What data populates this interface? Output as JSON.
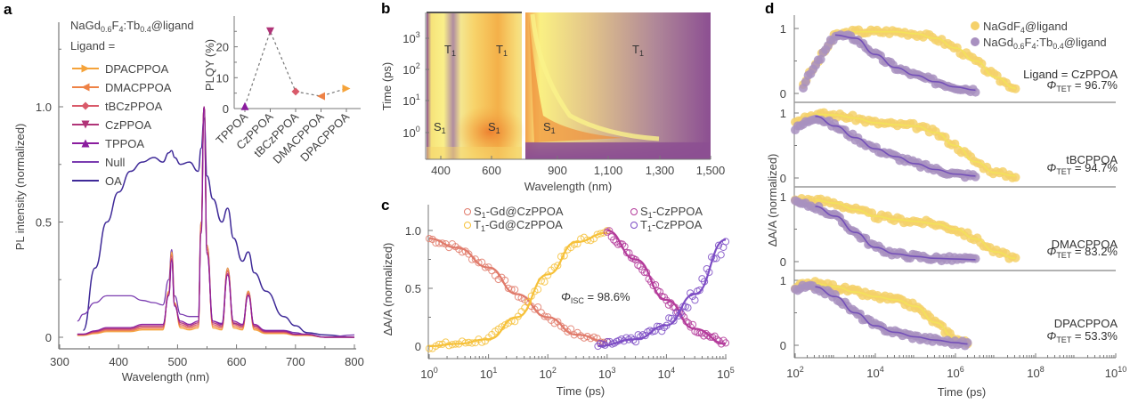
{
  "chart_data": [
    {
      "panel": "a",
      "type": "line",
      "title": "NaGd0.6F4:Tb0.4@ligand",
      "legend_title": "Ligand =",
      "xlabel": "Wavelength (nm)",
      "ylabel": "PL intensity (normalized)",
      "xlim": [
        300,
        800
      ],
      "ylim": [
        -0.03,
        1.4
      ],
      "xticks": [
        "300",
        "400",
        "500",
        "600",
        "700",
        "800"
      ],
      "yticks": [
        "0",
        "0.5",
        "1.0"
      ],
      "legend_position": "top-left",
      "series": [
        {
          "name": "DPACPPOA",
          "color": "#f5a33a",
          "marker": "triangle-right"
        },
        {
          "name": "DMACPPOA",
          "color": "#ee8246",
          "marker": "triangle-left"
        },
        {
          "name": "tBCzPPOA",
          "color": "#d95a6a",
          "marker": "diamond"
        },
        {
          "name": "CzPPOA",
          "color": "#b03478",
          "marker": "triangle-down"
        },
        {
          "name": "TPPOA",
          "color": "#8a1c9e",
          "marker": "triangle-up"
        },
        {
          "name": "Null",
          "color": "#7a3cb0",
          "marker": "none"
        },
        {
          "name": "OA",
          "color": "#3f2a98",
          "marker": "none"
        }
      ],
      "x": [
        330,
        340,
        360,
        380,
        400,
        420,
        440,
        460,
        475,
        485,
        490,
        495,
        505,
        520,
        535,
        540,
        545,
        550,
        560,
        575,
        585,
        595,
        610,
        620,
        630,
        650,
        680,
        700,
        720,
        750,
        800
      ],
      "tb_peak_series": [
        0.01,
        0.01,
        0.02,
        0.03,
        0.03,
        0.03,
        0.04,
        0.04,
        0.04,
        0.2,
        0.37,
        0.15,
        0.05,
        0.04,
        0.05,
        0.5,
        1.0,
        0.4,
        0.05,
        0.04,
        0.3,
        0.05,
        0.04,
        0.2,
        0.04,
        0.02,
        0.02,
        0.01,
        0.01,
        0.0,
        0.0
      ],
      "null_series": [
        0.07,
        0.1,
        0.15,
        0.18,
        0.18,
        0.18,
        0.16,
        0.15,
        0.14,
        0.25,
        0.38,
        0.18,
        0.1,
        0.09,
        0.09,
        0.5,
        1.0,
        0.4,
        0.07,
        0.06,
        0.3,
        0.06,
        0.05,
        0.2,
        0.05,
        0.03,
        0.03,
        0.02,
        0.01,
        0.0,
        0.01
      ],
      "oa_series": [
        null,
        0.03,
        0.3,
        0.5,
        0.63,
        0.72,
        0.76,
        0.78,
        0.76,
        0.8,
        0.81,
        0.78,
        0.75,
        0.76,
        0.72,
        0.82,
        0.95,
        0.7,
        0.6,
        0.5,
        0.56,
        0.43,
        0.33,
        0.37,
        0.28,
        0.2,
        0.09,
        0.05,
        0.02,
        0.01,
        0.0
      ],
      "inset": {
        "type": "line",
        "ylabel": "PLQY (%)",
        "yticks": [
          "0",
          "10",
          "20"
        ],
        "ylim": [
          0,
          27
        ],
        "categories": [
          "TPPOA",
          "CzPPOA",
          "tBCzPPOA",
          "DMACPPOA",
          "DPACPPOA"
        ],
        "values": [
          0.8,
          25,
          5.5,
          4,
          6.5
        ],
        "colors": [
          "#8a1c9e",
          "#b03478",
          "#d95a6a",
          "#ee8246",
          "#f5a33a"
        ]
      }
    },
    {
      "panel": "b",
      "type": "heatmap",
      "xlabel": "Wavelength (nm)",
      "ylabel": "Time (ps)",
      "xticks": [
        "400",
        "600",
        "900",
        "1,100",
        "1,300",
        "1,500"
      ],
      "yticks": [
        "10^0",
        "10^1",
        "10^2",
        "10^3"
      ],
      "xlim": [
        350,
        1500
      ],
      "ylim_log10": [
        -1,
        4
      ],
      "annotations": [
        "T1",
        "T1",
        "T1",
        "S1",
        "S1",
        "S1"
      ]
    },
    {
      "panel": "c",
      "type": "scatter",
      "xlabel": "Time (ps)",
      "ylabel": "ΔA/A (normalized)",
      "xscale": "log",
      "xlim": [
        1,
        100000
      ],
      "ylim": [
        -0.05,
        1.1
      ],
      "xticks": [
        "10^0",
        "10^1",
        "10^2",
        "10^3",
        "10^4",
        "10^5"
      ],
      "yticks": [
        "0",
        "0.5",
        "1.0"
      ],
      "annotation": "Φ_ISC = 98.6%",
      "series": [
        {
          "name": "S1-Gd@CzPPOA",
          "color": "#e07a6a",
          "x": [
            1,
            3,
            10,
            30,
            100,
            300,
            1000
          ],
          "values": [
            0.93,
            0.85,
            0.68,
            0.45,
            0.25,
            0.1,
            0.04
          ]
        },
        {
          "name": "T1-Gd@CzPPOA",
          "color": "#f6c13a",
          "x": [
            1,
            3,
            10,
            30,
            100,
            300,
            1000
          ],
          "values": [
            0.0,
            0.02,
            0.06,
            0.25,
            0.62,
            0.9,
            0.98
          ]
        },
        {
          "name": "S1-CzPPOA",
          "color": "#b33a9a",
          "x": [
            1000,
            3000,
            10000,
            30000,
            100000
          ],
          "values": [
            1.0,
            0.75,
            0.4,
            0.15,
            0.02
          ]
        },
        {
          "name": "T1-CzPPOA",
          "color": "#7c4cc4",
          "x": [
            700,
            3000,
            10000,
            30000,
            100000
          ],
          "values": [
            0.0,
            0.06,
            0.18,
            0.45,
            0.92
          ]
        }
      ]
    },
    {
      "panel": "d",
      "type": "scatter",
      "xlabel": "Time (ps)",
      "ylabel": "ΔA/A (normalized)",
      "xscale": "log",
      "xlim": [
        100,
        10000000000
      ],
      "xticks": [
        "10^2",
        "10^4",
        "10^6",
        "10^8",
        "10^10"
      ],
      "yticks": [
        "0",
        "1"
      ],
      "legend": [
        {
          "name": "NaGdF4@ligand",
          "color": "#f5d16a"
        },
        {
          "name": "NaGd0.6F4:Tb0.4@ligand",
          "color": "#a890c0"
        }
      ],
      "subplots": [
        {
          "label": "Ligand = CzPPOA",
          "phi": "Φ_TET = 96.7%",
          "x_log": [
            2.2,
            3.0,
            3.5,
            4.0,
            4.5,
            5.0,
            5.5,
            6.0,
            6.5,
            7.0,
            7.5
          ],
          "gd": [
            0.15,
            0.9,
            0.95,
            0.95,
            0.95,
            0.92,
            0.85,
            0.7,
            0.5,
            0.25,
            0.08
          ],
          "tb": [
            0.12,
            0.9,
            0.85,
            0.6,
            0.4,
            0.28,
            0.18,
            0.1,
            0.05,
            null,
            null
          ]
        },
        {
          "label": "tBCPPOA",
          "phi": "Φ_TET = 94.7%",
          "x_log": [
            2.0,
            2.5,
            3.0,
            3.5,
            4.0,
            4.5,
            5.0,
            5.5,
            6.0,
            6.5,
            7.0,
            7.5
          ],
          "gd": [
            0.9,
            0.98,
            0.97,
            0.92,
            0.85,
            0.82,
            0.8,
            0.7,
            0.5,
            0.25,
            0.08,
            0.03
          ],
          "tb": [
            0.75,
            0.95,
            0.8,
            0.62,
            0.45,
            0.33,
            0.22,
            0.13,
            0.06,
            0.03,
            null,
            null
          ]
        },
        {
          "label": "DMACPPOA",
          "phi": "Φ_TET = 83.2%",
          "x_log": [
            2.0,
            2.5,
            3.0,
            3.5,
            4.0,
            4.5,
            5.0,
            5.5,
            6.0,
            6.5,
            7.0,
            7.5
          ],
          "gd": [
            0.95,
            0.95,
            0.9,
            0.8,
            0.7,
            0.65,
            0.62,
            0.58,
            0.5,
            0.35,
            0.15,
            0.05
          ],
          "tb": [
            0.9,
            0.85,
            0.7,
            0.45,
            0.22,
            0.12,
            0.08,
            0.05,
            0.04,
            0.03,
            null,
            null
          ]
        },
        {
          "label": "DPACPPOA",
          "phi": "Φ_TET = 53.3%",
          "x_log": [
            2.0,
            2.5,
            3.0,
            3.5,
            4.0,
            4.5,
            5.0,
            5.5,
            6.0,
            6.3
          ],
          "gd": [
            0.9,
            0.95,
            0.9,
            0.82,
            0.75,
            0.7,
            0.6,
            0.35,
            0.1,
            0.03
          ],
          "tb": [
            0.88,
            0.9,
            0.75,
            0.5,
            0.3,
            0.2,
            0.13,
            0.08,
            0.04,
            0.02
          ]
        }
      ]
    }
  ],
  "panel_labels": [
    "a",
    "b",
    "c",
    "d"
  ]
}
